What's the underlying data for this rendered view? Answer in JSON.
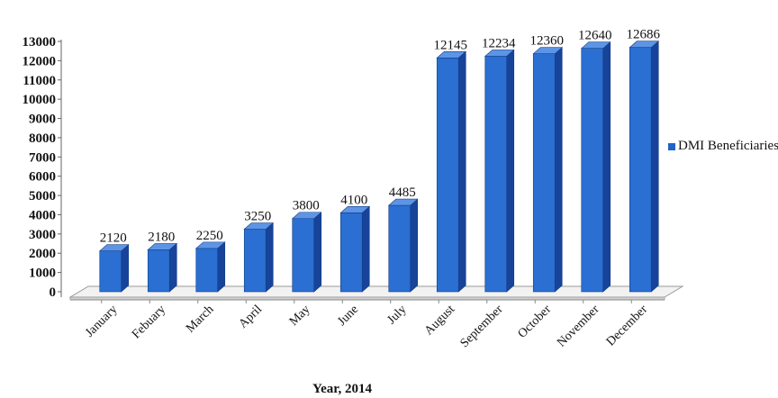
{
  "chart_data": {
    "type": "bar",
    "categories": [
      "January",
      "Febuary",
      "March",
      "April",
      "May",
      "June",
      "July",
      "August",
      "September",
      "October",
      "November",
      "December"
    ],
    "series": [
      {
        "name": "DMI Beneficiaries",
        "values": [
          2120,
          2180,
          2250,
          3250,
          3800,
          4100,
          4485,
          12145,
          12234,
          12360,
          12640,
          12686
        ]
      }
    ],
    "data_labels": [
      "2120",
      "2180",
      "2250",
      "3250",
      "3800",
      "4100",
      "4485",
      "12145",
      "12234",
      "12360",
      "12640",
      "12686"
    ],
    "y_ticks": [
      0,
      1000,
      2000,
      3000,
      4000,
      5000,
      6000,
      7000,
      8000,
      9000,
      10000,
      11000,
      12000,
      13000
    ],
    "ylim": [
      0,
      13000
    ],
    "xlabel": "Year, 2014",
    "ylabel": "",
    "title": "",
    "legend_position": "right",
    "grid": false,
    "style": "3d-column",
    "colors": {
      "bar_front": "#2a6fd1",
      "bar_side": "#17449a",
      "bar_top": "#5d95e6",
      "floor": "#f2f2f2"
    }
  }
}
